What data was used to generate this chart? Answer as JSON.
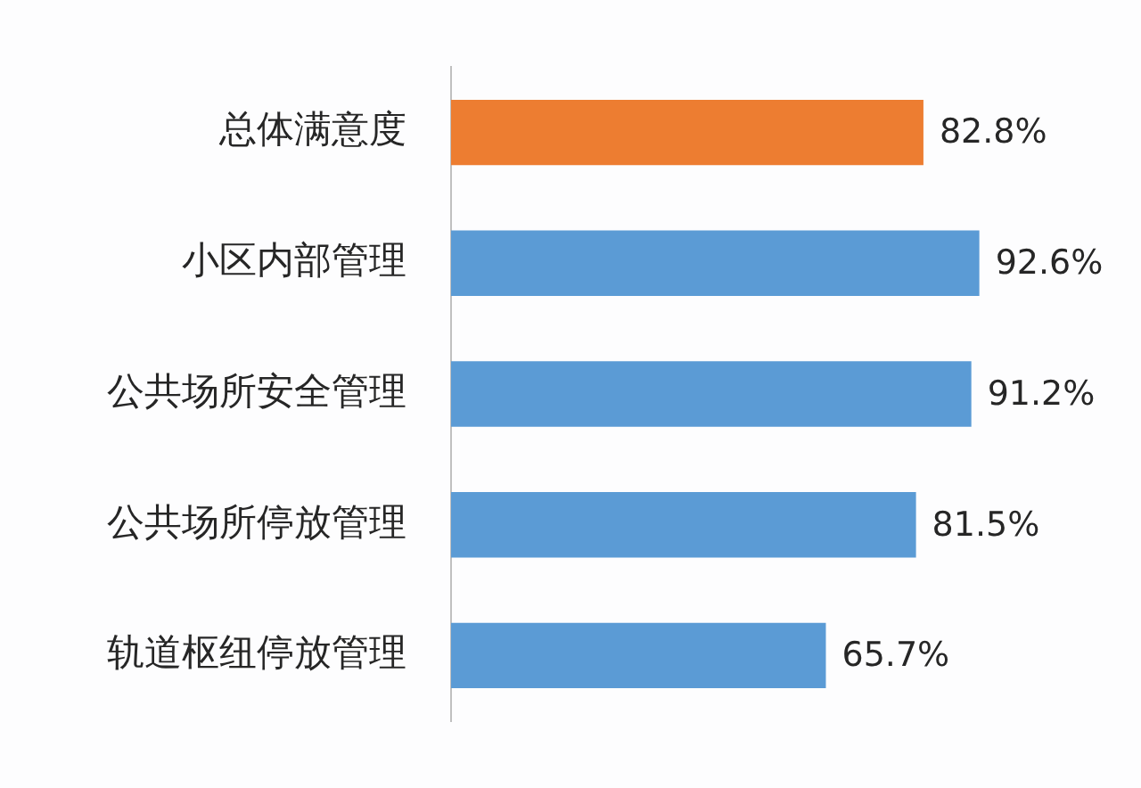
{
  "chart_data": {
    "type": "bar",
    "orientation": "horizontal",
    "categories": [
      "总体满意度",
      "小区内部管理",
      "公共场所安全管理",
      "公共场所停放管理",
      "轨道枢纽停放管理"
    ],
    "values": [
      82.8,
      92.6,
      91.2,
      81.5,
      65.7
    ],
    "value_labels": [
      "82.8%",
      "92.6%",
      "91.2%",
      "81.5%",
      "65.7%"
    ],
    "colors": [
      "#ed7d31",
      "#5b9bd5",
      "#5b9bd5",
      "#5b9bd5",
      "#5b9bd5"
    ],
    "tick_labels": "y",
    "grid": false,
    "legend": false
  }
}
